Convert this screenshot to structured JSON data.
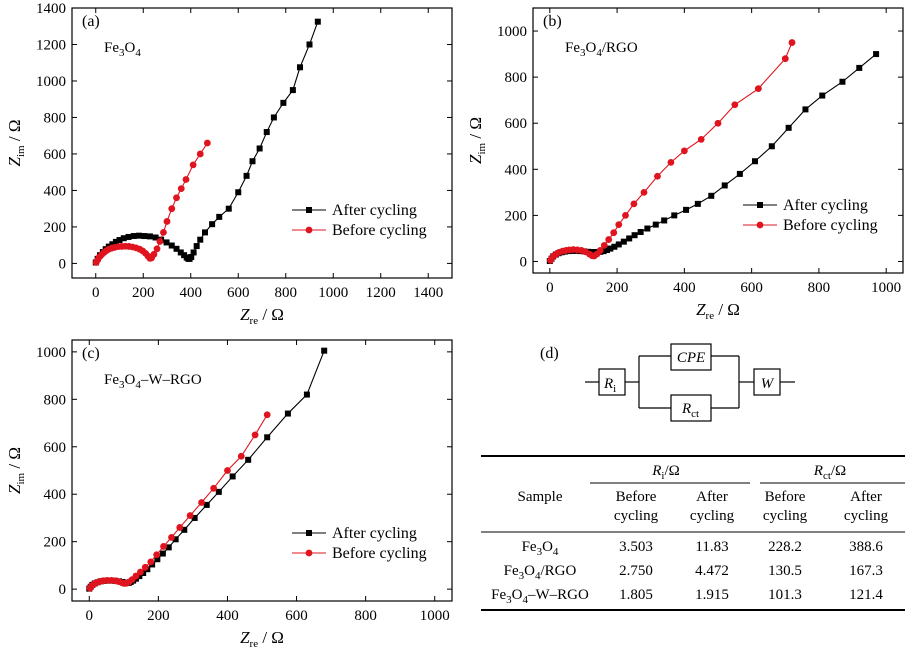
{
  "chart_data": [
    {
      "type": "line",
      "panel_label": "(a)",
      "sample_label": [
        {
          "t": "Fe"
        },
        {
          "t": "3",
          "sub": true
        },
        {
          "t": "O"
        },
        {
          "t": "4",
          "sub": true
        }
      ],
      "xlabel_main": "Z",
      "xlabel_sub": "re",
      "xlabel_unit": " / Ω",
      "ylabel_main": "Z",
      "ylabel_sub": "im",
      "ylabel_unit": " / Ω",
      "xlim": [
        -100,
        1500
      ],
      "ylim": [
        -80,
        1400
      ],
      "xticks": [
        0,
        200,
        400,
        600,
        800,
        1000,
        1200,
        1400
      ],
      "yticks": [
        0,
        200,
        400,
        600,
        800,
        1000,
        1200,
        1400
      ],
      "legend_position": "bottom-right",
      "series": [
        {
          "name": "After cycling",
          "color": "#000000",
          "marker": "square",
          "x": [
            0,
            8,
            18,
            30,
            42,
            55,
            70,
            85,
            100,
            118,
            138,
            160,
            182,
            205,
            228,
            252,
            275,
            298,
            320,
            340,
            358,
            372,
            383,
            390,
            395,
            402,
            412,
            425,
            440,
            460,
            490,
            520,
            560,
            600,
            635,
            660,
            690,
            720,
            750,
            790,
            830,
            860,
            900,
            935
          ],
          "y": [
            5,
            25,
            45,
            62,
            78,
            92,
            105,
            118,
            128,
            138,
            145,
            150,
            152,
            150,
            148,
            142,
            130,
            115,
            98,
            80,
            60,
            45,
            32,
            25,
            25,
            35,
            60,
            95,
            130,
            170,
            215,
            255,
            300,
            390,
            480,
            560,
            630,
            720,
            800,
            880,
            950,
            1075,
            1200,
            1325
          ]
        },
        {
          "name": "Before cycling",
          "color": "#e0141e",
          "marker": "circle",
          "x": [
            2,
            8,
            15,
            25,
            35,
            45,
            55,
            68,
            80,
            95,
            110,
            125,
            140,
            155,
            170,
            185,
            198,
            210,
            220,
            228,
            235,
            245,
            258,
            270,
            285,
            300,
            320,
            340,
            360,
            380,
            410,
            440,
            470
          ],
          "y": [
            5,
            20,
            35,
            48,
            60,
            70,
            78,
            84,
            88,
            92,
            93,
            94,
            93,
            90,
            85,
            78,
            68,
            55,
            40,
            28,
            30,
            50,
            80,
            120,
            170,
            230,
            300,
            360,
            410,
            460,
            540,
            600,
            660
          ]
        }
      ]
    },
    {
      "type": "line",
      "panel_label": "(b)",
      "sample_label": [
        {
          "t": "Fe"
        },
        {
          "t": "3",
          "sub": true
        },
        {
          "t": "O"
        },
        {
          "t": "4",
          "sub": true
        },
        {
          "t": "/RGO"
        }
      ],
      "xlabel_main": "Z",
      "xlabel_sub": "re",
      "xlabel_unit": " / Ω",
      "ylabel_main": "Z",
      "ylabel_sub": "im",
      "ylabel_unit": " / Ω",
      "xlim": [
        -50,
        1050
      ],
      "ylim": [
        -50,
        1100
      ],
      "xticks": [
        0,
        200,
        400,
        600,
        800,
        1000
      ],
      "yticks": [
        0,
        200,
        400,
        600,
        800,
        1000
      ],
      "legend_position": "bottom-right",
      "series": [
        {
          "name": "After cycling",
          "color": "#000000",
          "marker": "square",
          "x": [
            0,
            5,
            10,
            18,
            26,
            35,
            45,
            55,
            66,
            78,
            90,
            102,
            114,
            126,
            138,
            150,
            160,
            170,
            180,
            192,
            205,
            220,
            236,
            252,
            270,
            290,
            315,
            340,
            370,
            405,
            440,
            480,
            520,
            565,
            610,
            660,
            710,
            760,
            810,
            870,
            920,
            970
          ],
          "y": [
            2,
            12,
            22,
            30,
            36,
            40,
            43,
            45,
            46,
            46,
            45,
            44,
            42,
            41,
            41,
            42,
            45,
            50,
            56,
            64,
            74,
            86,
            100,
            114,
            128,
            143,
            160,
            178,
            200,
            224,
            250,
            285,
            330,
            380,
            435,
            500,
            580,
            660,
            720,
            780,
            840,
            900
          ]
        },
        {
          "name": "Before cycling",
          "color": "#e0141e",
          "marker": "circle",
          "x": [
            2,
            6,
            12,
            20,
            28,
            38,
            48,
            58,
            70,
            82,
            94,
            106,
            118,
            126,
            132,
            140,
            150,
            162,
            175,
            190,
            205,
            225,
            250,
            280,
            320,
            360,
            400,
            450,
            500,
            550,
            620,
            700,
            720
          ],
          "y": [
            5,
            15,
            25,
            33,
            40,
            45,
            48,
            50,
            52,
            50,
            48,
            42,
            32,
            25,
            24,
            32,
            48,
            70,
            95,
            125,
            160,
            200,
            250,
            300,
            370,
            430,
            480,
            530,
            600,
            680,
            750,
            880,
            950
          ]
        }
      ]
    },
    {
      "type": "line",
      "panel_label": "(c)",
      "sample_label": [
        {
          "t": "Fe"
        },
        {
          "t": "3",
          "sub": true
        },
        {
          "t": "O"
        },
        {
          "t": "4",
          "sub": true
        },
        {
          "t": "–W–RGO"
        }
      ],
      "xlabel_main": "Z",
      "xlabel_sub": "re",
      "xlabel_unit": " / Ω",
      "ylabel_main": "Z",
      "ylabel_sub": "im",
      "ylabel_unit": " / Ω",
      "xlim": [
        -50,
        1050
      ],
      "ylim": [
        -50,
        1050
      ],
      "xticks": [
        0,
        200,
        400,
        600,
        800,
        1000
      ],
      "yticks": [
        0,
        200,
        400,
        600,
        800,
        1000
      ],
      "legend_position": "bottom-right",
      "series": [
        {
          "name": "After cycling",
          "color": "#000000",
          "marker": "square",
          "x": [
            0,
            4,
            9,
            16,
            24,
            33,
            43,
            53,
            64,
            75,
            86,
            96,
            104,
            110,
            115,
            120,
            127,
            135,
            145,
            156,
            168,
            182,
            197,
            213,
            230,
            250,
            275,
            305,
            340,
            375,
            415,
            460,
            515,
            575,
            630,
            680
          ],
          "y": [
            2,
            10,
            18,
            24,
            29,
            33,
            35,
            36,
            36,
            35,
            33,
            30,
            27,
            26,
            27,
            30,
            36,
            44,
            55,
            68,
            84,
            104,
            126,
            150,
            176,
            210,
            250,
            300,
            355,
            410,
            475,
            545,
            640,
            740,
            820,
            1005
          ]
        },
        {
          "name": "Before cycling",
          "color": "#e0141e",
          "marker": "circle",
          "x": [
            2,
            6,
            12,
            20,
            30,
            40,
            52,
            64,
            76,
            87,
            96,
            102,
            108,
            115,
            124,
            135,
            148,
            162,
            178,
            195,
            215,
            238,
            262,
            292,
            325,
            360,
            400,
            440,
            480,
            515
          ],
          "y": [
            4,
            12,
            20,
            27,
            32,
            35,
            37,
            37,
            35,
            31,
            26,
            24,
            25,
            30,
            40,
            55,
            72,
            92,
            115,
            145,
            180,
            218,
            260,
            310,
            365,
            425,
            500,
            560,
            650,
            735
          ]
        }
      ]
    }
  ],
  "circuit": {
    "panel_label": "(d)",
    "ri_main": "R",
    "ri_sub": "i",
    "cpe_label": "CPE",
    "rct_main": "R",
    "rct_sub": "ct",
    "w_label": "W"
  },
  "table": {
    "sample_header": "Sample",
    "ri_header_main": "R",
    "ri_header_sub": "i",
    "ri_header_unit": "/Ω",
    "rct_header_main": "R",
    "rct_header_sub": "ct",
    "rct_header_unit": "/Ω",
    "sub_headers": [
      [
        "Before",
        "cycling"
      ],
      [
        "After",
        "cycling"
      ],
      [
        "Before",
        "cycling"
      ],
      [
        "After",
        "cycling"
      ]
    ],
    "rows": [
      {
        "sample": [
          {
            "t": "Fe"
          },
          {
            "t": "3",
            "sub": true
          },
          {
            "t": "O"
          },
          {
            "t": "4",
            "sub": true
          }
        ],
        "values": [
          "3.503",
          "11.83",
          "228.2",
          "388.6"
        ]
      },
      {
        "sample": [
          {
            "t": "Fe"
          },
          {
            "t": "3",
            "sub": true
          },
          {
            "t": "O"
          },
          {
            "t": "4",
            "sub": true
          },
          {
            "t": "/RGO"
          }
        ],
        "values": [
          "2.750",
          "4.472",
          "130.5",
          "167.3"
        ]
      },
      {
        "sample": [
          {
            "t": "Fe"
          },
          {
            "t": "3",
            "sub": true
          },
          {
            "t": "O"
          },
          {
            "t": "4",
            "sub": true
          },
          {
            "t": "–W–RGO"
          }
        ],
        "values": [
          "1.805",
          "1.915",
          "101.3",
          "121.4"
        ]
      }
    ]
  }
}
